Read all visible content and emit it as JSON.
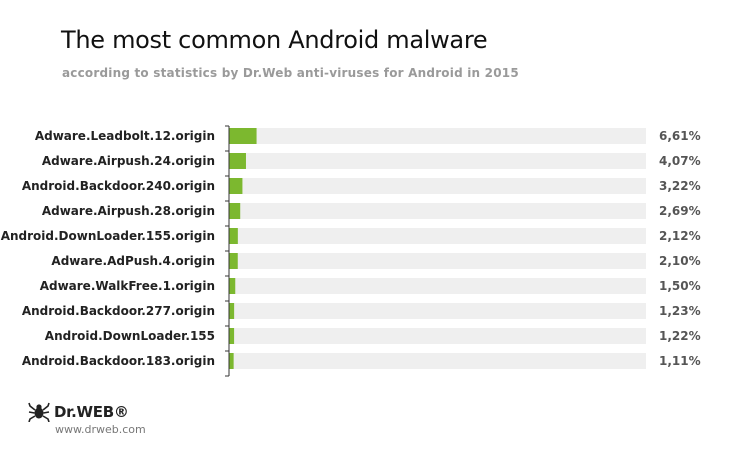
{
  "header": {
    "title": "The most common Android malware",
    "subtitle": "according to statistics by Dr.Web anti-viruses for Android in 2015"
  },
  "footer": {
    "logo_text": "Dr.WEB®",
    "website": "www.drweb.com"
  },
  "colors": {
    "bar": "#7cb82f",
    "track": "#efefef",
    "axis": "#333333"
  },
  "chart_data": {
    "type": "bar",
    "orientation": "horizontal",
    "categories": [
      "Adware.Leadbolt.12.origin",
      "Adware.Airpush.24.origin",
      "Android.Backdoor.240.origin",
      "Adware.Airpush.28.origin",
      "Android.DownLoader.155.origin",
      "Adware.AdPush.4.origin",
      "Adware.WalkFree.1.origin",
      "Android.Backdoor.277.origin",
      "Android.DownLoader.155",
      "Android.Backdoor.183.origin"
    ],
    "values": [
      6.61,
      4.07,
      3.22,
      2.69,
      2.12,
      2.1,
      1.5,
      1.23,
      1.22,
      1.11
    ],
    "value_labels": [
      "6,61%",
      "4,07%",
      "3,22%",
      "2,69%",
      "2,12%",
      "2,10%",
      "1,50%",
      "1,23%",
      "1,22%",
      "1,11%"
    ],
    "xlim": [
      0,
      100
    ],
    "grid": false,
    "legend": "none"
  }
}
